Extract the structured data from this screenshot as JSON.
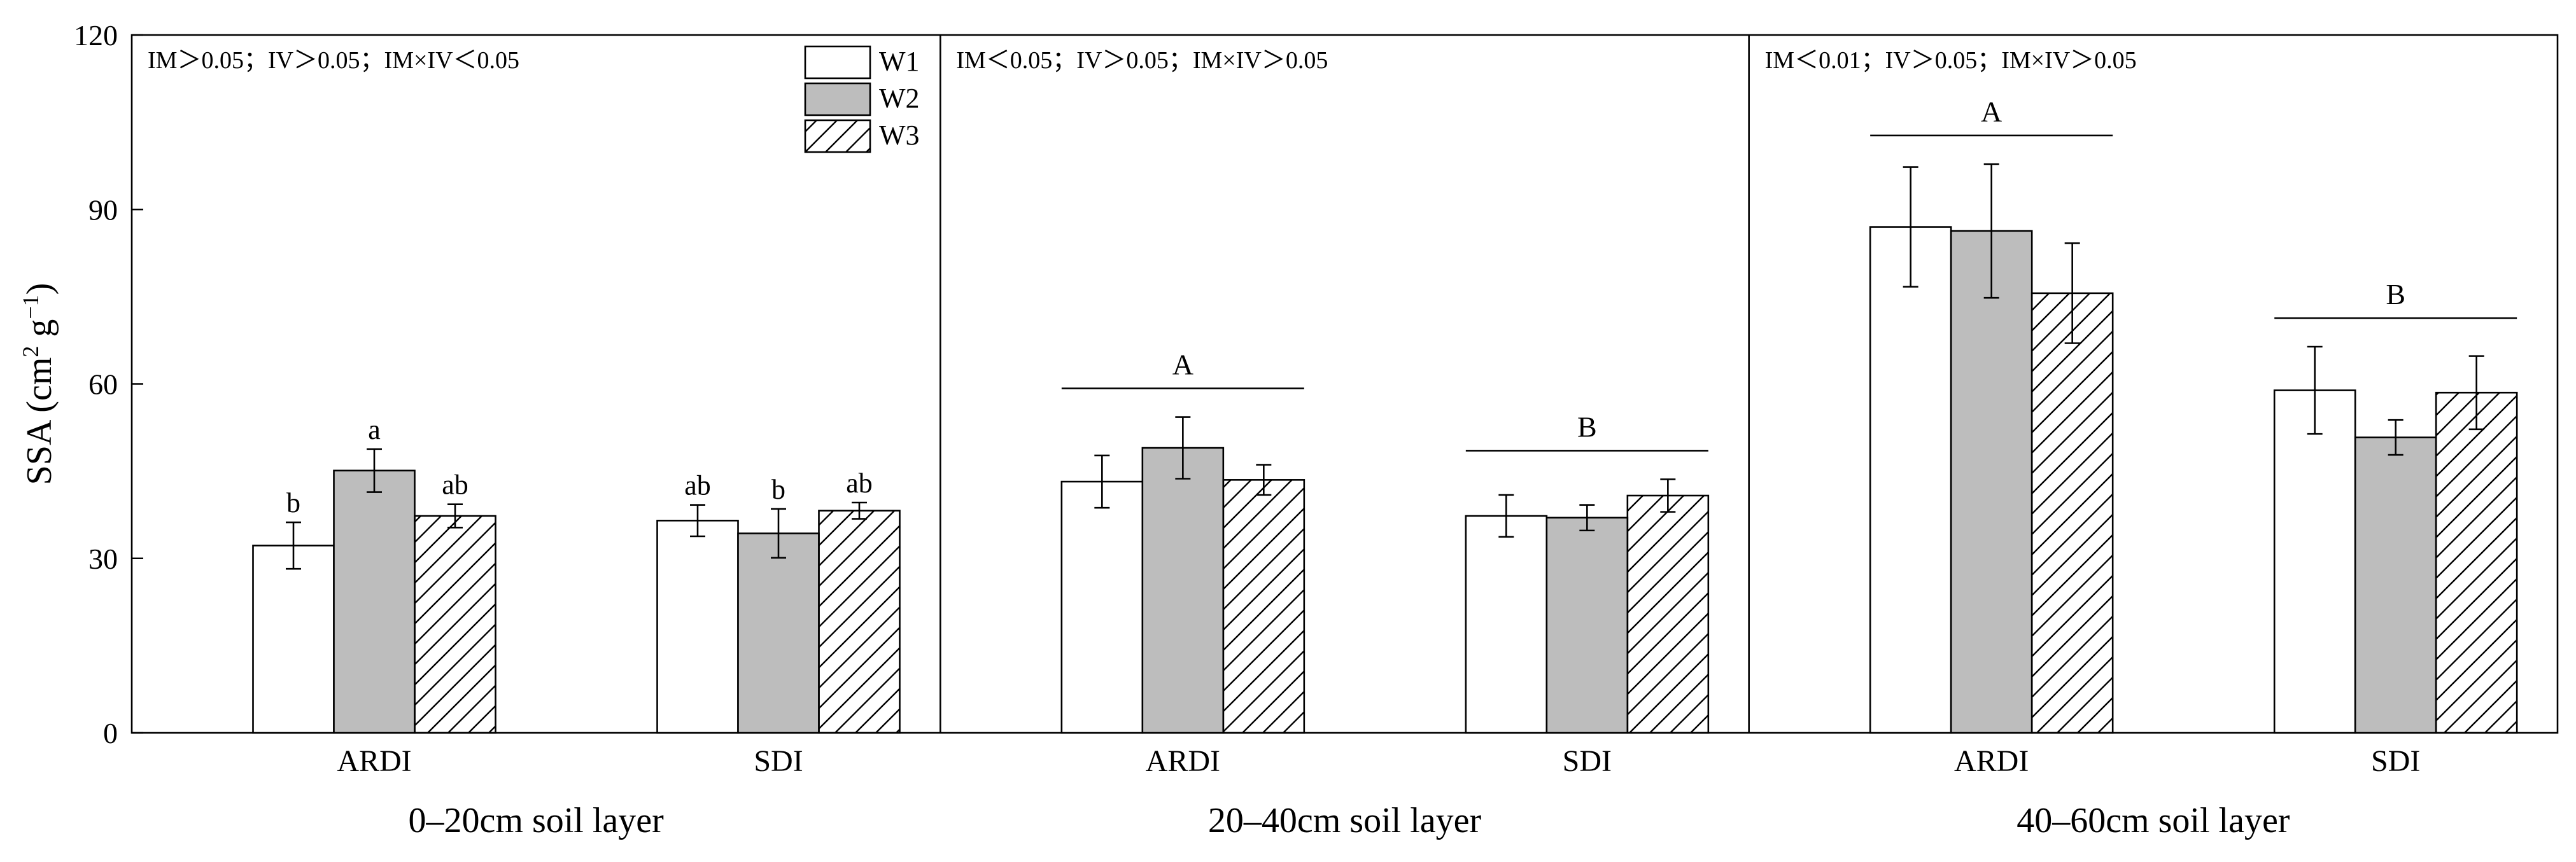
{
  "chart_data": {
    "type": "bar",
    "ylabel": {
      "main": "SSA (cm",
      "sup1": "2",
      "mid": " g",
      "sup2": "−1",
      "end": ")"
    },
    "ylim": [
      0,
      120
    ],
    "yticks": [
      0,
      30,
      60,
      90,
      120
    ],
    "legend": {
      "position": "top-right of first panel",
      "entries": [
        {
          "name": "W1",
          "fill": "white"
        },
        {
          "name": "W2",
          "fill": "gray"
        },
        {
          "name": "W3",
          "fill": "hatch"
        }
      ]
    },
    "colors": {
      "w1": "#ffffff",
      "w2": "#bdbdbd",
      "w3": "#ffffff",
      "stroke": "#000000"
    },
    "panels": [
      {
        "xlabel": "0–20cm soil layer",
        "stats": "IM＞0.05；IV＞0.05；IM×IV＜0.05",
        "groups": [
          {
            "name": "ARDI",
            "values": [
              32.2,
              45.1,
              37.3
            ],
            "errors": [
              4.0,
              3.7,
              2.0
            ],
            "labels": [
              "b",
              "a",
              "ab"
            ],
            "group_letter": ""
          },
          {
            "name": "SDI",
            "values": [
              36.5,
              34.3,
              38.2
            ],
            "errors": [
              2.7,
              4.2,
              1.4
            ],
            "labels": [
              "ab",
              "b",
              "ab"
            ],
            "group_letter": ""
          }
        ]
      },
      {
        "xlabel": "20–40cm soil layer",
        "stats": "IM＜0.05；IV＞0.05；IM×IV＞0.05",
        "groups": [
          {
            "name": "ARDI",
            "values": [
              43.2,
              49.0,
              43.5
            ],
            "errors": [
              4.5,
              5.3,
              2.6
            ],
            "labels": [
              "",
              "",
              ""
            ],
            "group_letter": "A"
          },
          {
            "name": "SDI",
            "values": [
              37.3,
              37.0,
              40.8
            ],
            "errors": [
              3.6,
              2.2,
              2.8
            ],
            "labels": [
              "",
              "",
              ""
            ],
            "group_letter": "B"
          }
        ]
      },
      {
        "xlabel": "40–60cm soil layer",
        "stats": "IM＜0.01；IV＞0.05；IM×IV＞0.05",
        "groups": [
          {
            "name": "ARDI",
            "values": [
              87.0,
              86.3,
              75.6
            ],
            "errors": [
              10.3,
              11.5,
              8.6
            ],
            "labels": [
              "",
              "",
              ""
            ],
            "group_letter": "A"
          },
          {
            "name": "SDI",
            "values": [
              58.9,
              50.8,
              58.5
            ],
            "errors": [
              7.5,
              3.0,
              6.3
            ],
            "labels": [
              "",
              "",
              ""
            ],
            "group_letter": "B"
          }
        ]
      }
    ]
  }
}
